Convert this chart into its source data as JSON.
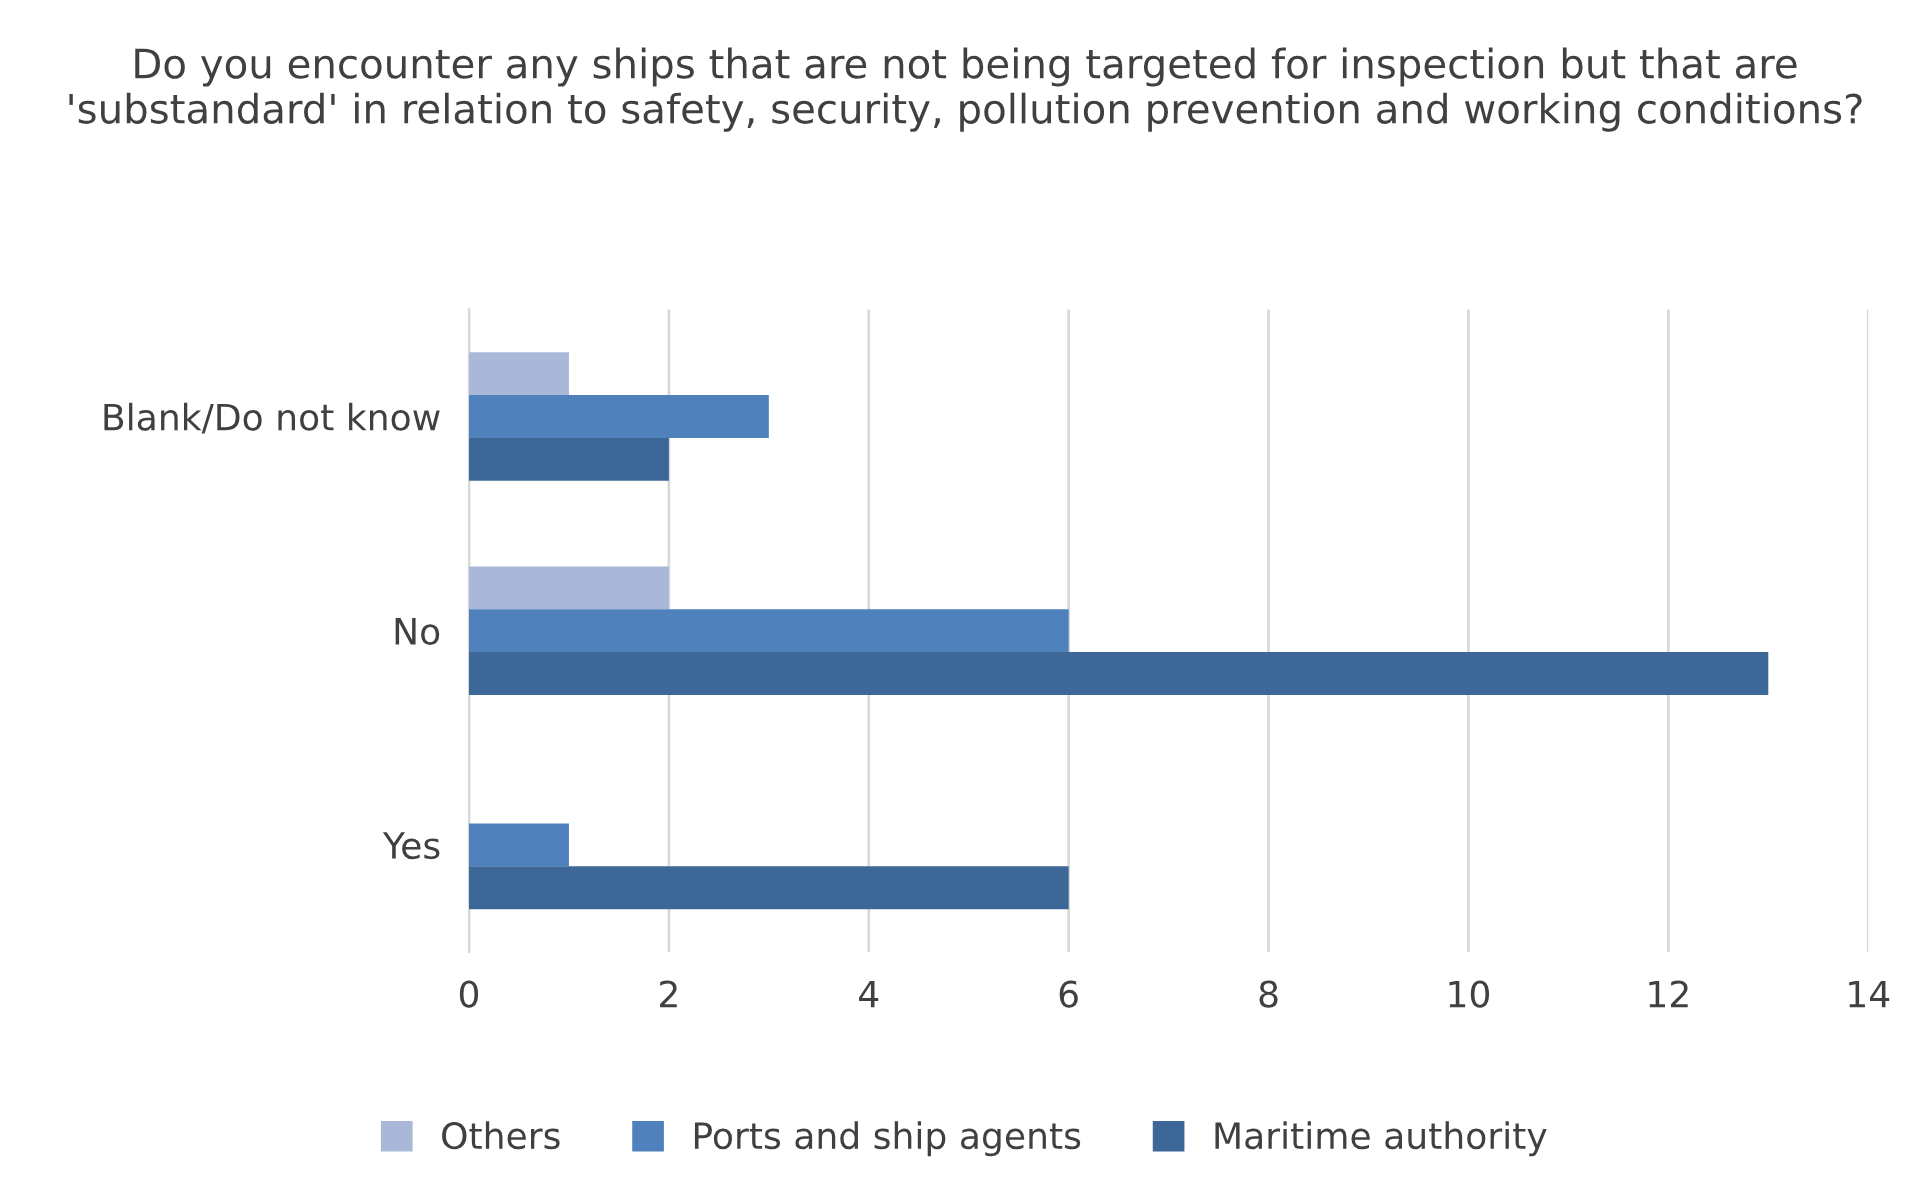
{
  "chart_data": {
    "type": "bar",
    "orientation": "horizontal",
    "title": "Do you encounter any ships that are not being targeted for inspection but that are 'substandard' in relation to safety, security, pollution prevention and working conditions?",
    "categories": [
      "Blank/Do not know",
      "No",
      "Yes"
    ],
    "series": [
      {
        "name": "Others",
        "color": "#a9b7d9",
        "values": [
          1,
          2,
          0
        ]
      },
      {
        "name": "Ports and ship agents",
        "color": "#4f81bd",
        "values": [
          3,
          6,
          1
        ]
      },
      {
        "name": "Maritime authority",
        "color": "#3d6797",
        "values": [
          2,
          13,
          6
        ]
      }
    ],
    "xlim": [
      0,
      14
    ],
    "xticks": [
      0,
      2,
      4,
      6,
      8,
      10,
      12,
      14
    ],
    "grid": "x",
    "legend": "bottom"
  }
}
